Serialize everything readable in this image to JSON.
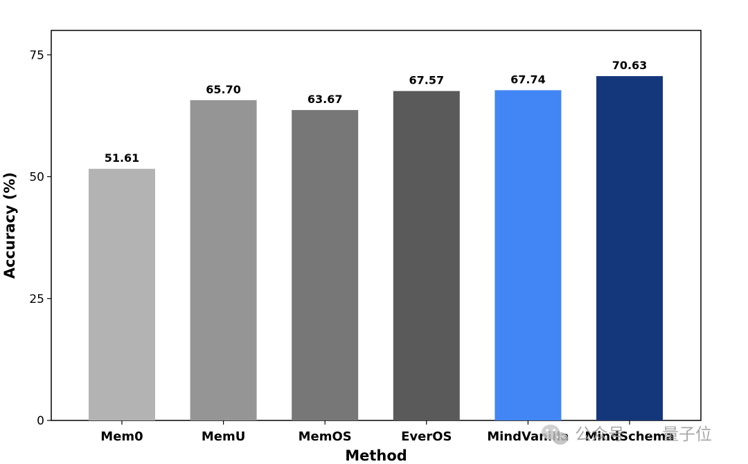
{
  "chart_data": {
    "type": "bar",
    "categories": [
      "Mem0",
      "MemU",
      "MemOS",
      "EverOS",
      "MindVanilla",
      "MindSchema"
    ],
    "values": [
      51.61,
      65.7,
      63.67,
      67.57,
      67.74,
      70.63
    ],
    "value_labels": [
      "51.61",
      "65.70",
      "63.67",
      "67.57",
      "67.74",
      "70.63"
    ],
    "colors": [
      "#b3b3b3",
      "#959595",
      "#777777",
      "#5a5a5a",
      "#4285f4",
      "#14377c"
    ],
    "xlabel": "Method",
    "ylabel": "Accuracy (%)",
    "ylim": [
      0,
      80
    ],
    "yticks": [
      0,
      25,
      50,
      75
    ],
    "grid": false,
    "legend": "none"
  },
  "watermark": {
    "text1": "公众号",
    "sep": "·",
    "text2": "量子位"
  }
}
